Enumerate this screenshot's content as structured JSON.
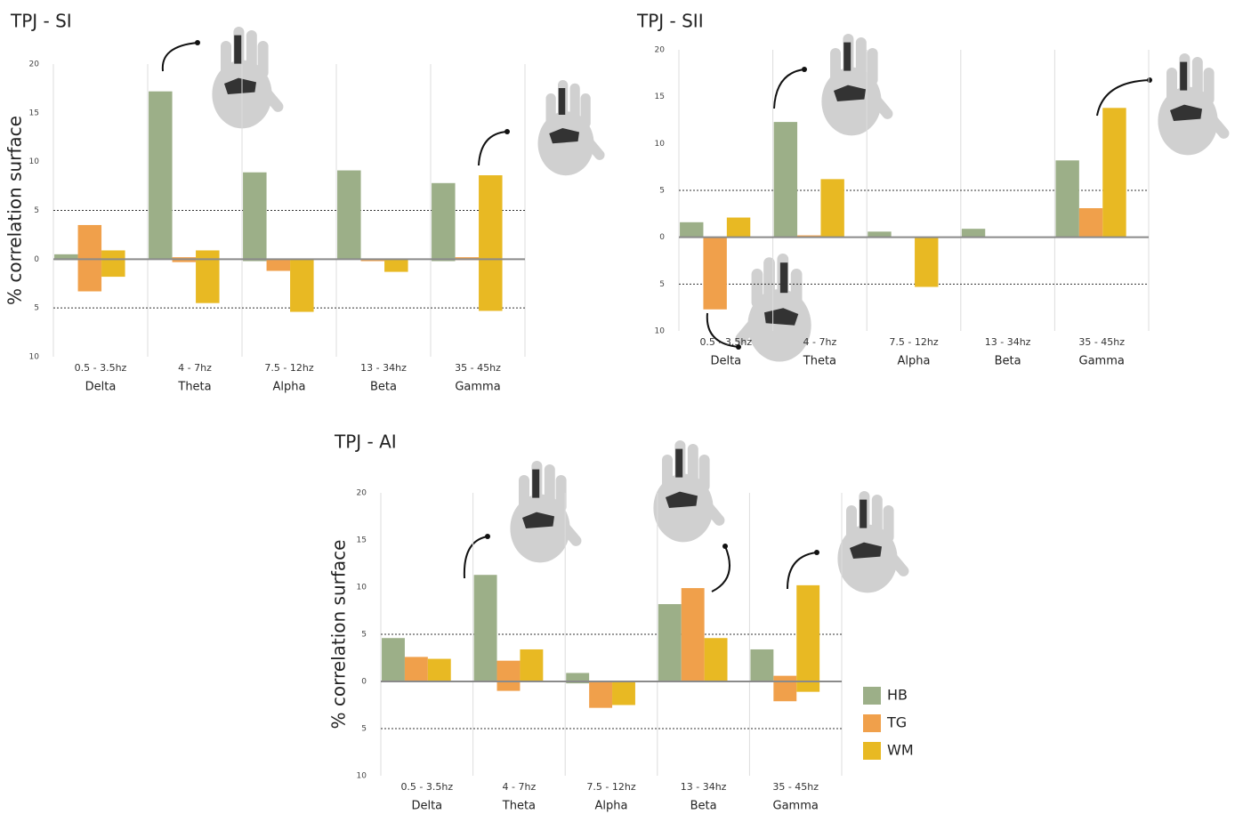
{
  "chart_data": [
    {
      "type": "bar",
      "title": "TPJ - SI",
      "y_label": "% correlation surface",
      "categories": [
        "Delta",
        "Theta",
        "Alpha",
        "Beta",
        "Gamma"
      ],
      "frequency_ranges": [
        "0.5 - 3.5hz",
        "4 - 7hz",
        "7.5 - 12hz",
        "13 - 34hz",
        "35 - 45hz"
      ],
      "series": [
        {
          "color": "#9caf88",
          "values": [
            0.5,
            17.2,
            8.9,
            9.1,
            7.8
          ],
          "negative_values": [
            -0.1,
            0,
            -0.2,
            0,
            -0.2
          ]
        },
        {
          "color": "#f0a04b",
          "values": [
            3.5,
            0.2,
            0,
            0,
            0.2
          ],
          "negative_values": [
            -3.3,
            -0.3,
            -1.2,
            -0.2,
            -0.1
          ]
        },
        {
          "color": "#e8b923",
          "values": [
            0.9,
            0.9,
            0,
            0,
            8.6
          ],
          "negative_values": [
            -1.8,
            -4.5,
            -5.4,
            -1.3,
            -5.3
          ]
        }
      ],
      "ylim": [
        -10,
        20
      ],
      "yticks": [
        20,
        15,
        10,
        5,
        0,
        {
          "value": -5,
          "label": "5"
        },
        {
          "value": -10,
          "label": "10"
        }
      ],
      "reference_lines": [
        5,
        -5
      ]
    },
    {
      "type": "bar",
      "title": "TPJ - SII",
      "categories": [
        "Delta",
        "Theta",
        "Alpha",
        "Beta",
        "Gamma"
      ],
      "frequency_ranges": [
        "0.5 - 3.5hz",
        "4 - 7hz",
        "7.5 - 12hz",
        "13 - 34hz",
        "35 - 45hz"
      ],
      "series": [
        {
          "color": "#9caf88",
          "values": [
            1.6,
            12.3,
            0.6,
            0.9,
            8.2
          ],
          "negative_values": [
            0,
            0,
            0,
            0,
            0
          ]
        },
        {
          "color": "#f0a04b",
          "values": [
            0,
            0.2,
            0,
            0,
            3.1
          ],
          "negative_values": [
            -7.7,
            0,
            0,
            0,
            0
          ]
        },
        {
          "color": "#e8b923",
          "values": [
            2.1,
            6.2,
            0,
            0,
            13.8
          ],
          "negative_values": [
            0,
            0,
            -5.3,
            0,
            0
          ]
        }
      ],
      "ylim": [
        -10,
        20
      ],
      "yticks": [
        20,
        15,
        10,
        5,
        0,
        {
          "value": -5,
          "label": "5"
        },
        {
          "value": -10,
          "label": "10"
        }
      ],
      "reference_lines": [
        5,
        -5
      ]
    },
    {
      "type": "bar",
      "title": "TPJ - AI",
      "y_label": "% correlation surface",
      "categories": [
        "Delta",
        "Theta",
        "Alpha",
        "Beta",
        "Gamma"
      ],
      "frequency_ranges": [
        "0.5 - 3.5hz",
        "4 - 7hz",
        "7.5 - 12hz",
        "13 - 34hz",
        "35 - 45hz"
      ],
      "series": [
        {
          "name": "HB",
          "color": "#9caf88",
          "values": [
            4.6,
            11.3,
            0.9,
            8.2,
            3.4
          ],
          "negative_values": [
            0,
            0,
            -0.2,
            0,
            0
          ]
        },
        {
          "name": "TG",
          "color": "#f0a04b",
          "values": [
            2.6,
            2.2,
            0,
            9.9,
            0.6
          ],
          "negative_values": [
            0,
            -1.0,
            -2.8,
            0,
            -2.1
          ]
        },
        {
          "name": "WM",
          "color": "#e8b923",
          "values": [
            2.4,
            3.4,
            0,
            4.6,
            10.2
          ],
          "negative_values": [
            0,
            0,
            -2.5,
            0,
            -1.1
          ]
        }
      ],
      "ylim": [
        -10,
        20
      ],
      "yticks": [
        20,
        15,
        10,
        5,
        0,
        {
          "value": -5,
          "label": "5"
        },
        {
          "value": -10,
          "label": "10"
        }
      ],
      "reference_lines": [
        5,
        -5
      ],
      "legend": "right"
    }
  ]
}
